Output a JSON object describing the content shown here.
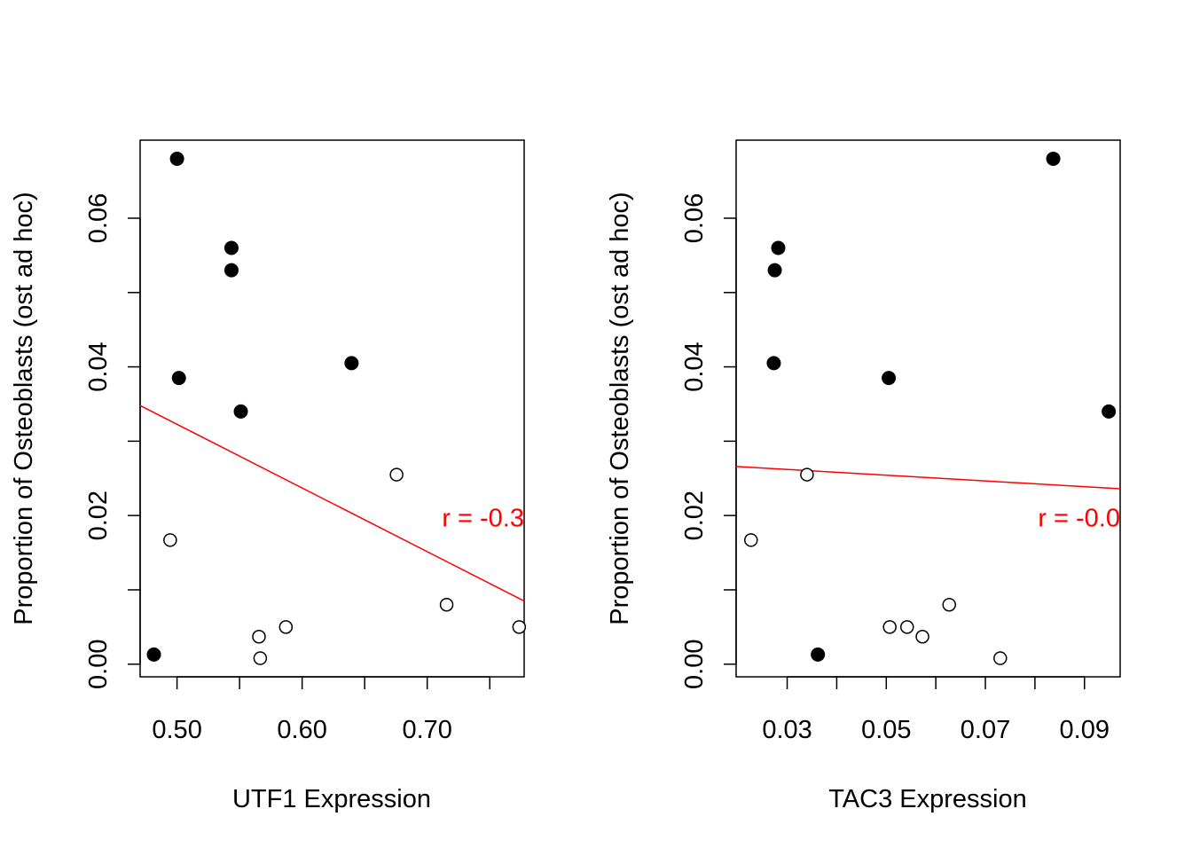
{
  "chart_data": [
    {
      "type": "scatter",
      "xlabel": "UTF1 Expression",
      "ylabel": "Proportion of Osteoblasts (ost ad hoc)",
      "xlim": [
        0.4705,
        0.7775
      ],
      "ylim": [
        -0.0017,
        0.0705
      ],
      "xticks": [
        0.5,
        0.55,
        0.6,
        0.65,
        0.7,
        0.75
      ],
      "xtick_labels": [
        "0.50",
        "0.60",
        "0.70"
      ],
      "xtick_label_values": [
        0.5,
        0.6,
        0.7
      ],
      "yticks": [
        0.0,
        0.01,
        0.02,
        0.03,
        0.04,
        0.05,
        0.06
      ],
      "ytick_labels": [
        "0.00",
        "0.02",
        "0.04",
        "0.06"
      ],
      "ytick_label_values": [
        0.0,
        0.02,
        0.04,
        0.06
      ],
      "filled_points": [
        [
          0.5,
          0.068
        ],
        [
          0.5435,
          0.056
        ],
        [
          0.5435,
          0.053
        ],
        [
          0.5015,
          0.0385
        ],
        [
          0.551,
          0.034
        ],
        [
          0.6395,
          0.0405
        ],
        [
          0.4815,
          0.0013
        ]
      ],
      "open_points": [
        [
          0.4945,
          0.0167
        ],
        [
          0.6755,
          0.0255
        ],
        [
          0.7155,
          0.008
        ],
        [
          0.7735,
          0.005
        ],
        [
          0.587,
          0.005
        ],
        [
          0.5655,
          0.0037
        ],
        [
          0.5665,
          0.0008
        ]
      ],
      "regression_line": [
        [
          0.4705,
          0.0348
        ],
        [
          0.7775,
          0.0085
        ]
      ],
      "annotation": "r = -0.3",
      "annotation_pos": [
        0.7775,
        0.0197
      ],
      "line_color": "#ff0000",
      "annotation_color": "#ff0000"
    },
    {
      "type": "scatter",
      "xlabel": "TAC3 Expression",
      "ylabel": "Proportion of Osteoblasts (ost ad hoc)",
      "xlim": [
        0.0197,
        0.0972
      ],
      "ylim": [
        -0.0017,
        0.0705
      ],
      "xticks": [
        0.03,
        0.04,
        0.05,
        0.06,
        0.07,
        0.08,
        0.09
      ],
      "xtick_labels": [
        "0.03",
        "0.05",
        "0.07",
        "0.09"
      ],
      "xtick_label_values": [
        0.03,
        0.05,
        0.07,
        0.09
      ],
      "yticks": [
        0.0,
        0.01,
        0.02,
        0.03,
        0.04,
        0.05,
        0.06
      ],
      "ytick_labels": [
        "0.00",
        "0.02",
        "0.04",
        "0.06"
      ],
      "ytick_label_values": [
        0.0,
        0.02,
        0.04,
        0.06
      ],
      "filled_points": [
        [
          0.0837,
          0.068
        ],
        [
          0.0282,
          0.056
        ],
        [
          0.0275,
          0.053
        ],
        [
          0.0273,
          0.0405
        ],
        [
          0.0505,
          0.0385
        ],
        [
          0.0949,
          0.034
        ],
        [
          0.0362,
          0.0013
        ]
      ],
      "open_points": [
        [
          0.0227,
          0.0167
        ],
        [
          0.034,
          0.0255
        ],
        [
          0.0627,
          0.008
        ],
        [
          0.0507,
          0.005
        ],
        [
          0.0542,
          0.005
        ],
        [
          0.0573,
          0.0037
        ],
        [
          0.073,
          0.0008
        ]
      ],
      "regression_line": [
        [
          0.0197,
          0.0266
        ],
        [
          0.0972,
          0.0236
        ]
      ],
      "annotation": "r = -0.0",
      "annotation_pos": [
        0.0972,
        0.0197
      ],
      "line_color": "#ff0000",
      "annotation_color": "#ff0000"
    }
  ]
}
